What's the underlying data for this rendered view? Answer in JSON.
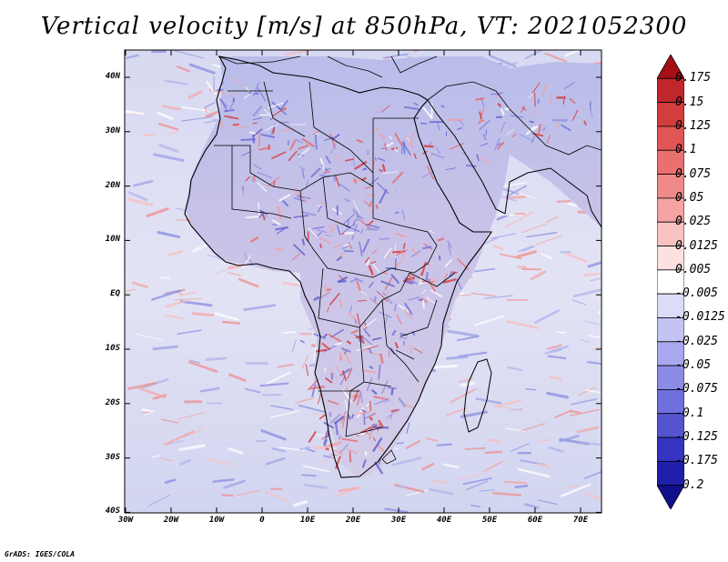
{
  "title": "Vertical velocity [m/s] at 850hPa, VT: 2021052300",
  "credit": "GrADS: IGES/COLA",
  "map": {
    "lon_range": [
      -30,
      75
    ],
    "lat_range": [
      -40,
      45
    ],
    "lat_labels": [
      "40N",
      "30N",
      "20N",
      "10N",
      "EQ",
      "10S",
      "20S",
      "30S",
      "40S"
    ],
    "lon_labels": [
      "30W",
      "20W",
      "10W",
      "0",
      "10E",
      "20E",
      "30E",
      "40E",
      "50E",
      "60E",
      "70E"
    ],
    "field": "vertical velocity",
    "coastline_color": "#000000",
    "border_color": "#000000"
  },
  "colorbar": {
    "labels": [
      "0.175",
      "0.15",
      "0.125",
      "0.1",
      "0.075",
      "0.05",
      "0.025",
      "0.0125",
      "0.005",
      "-0.005",
      "-0.0125",
      "-0.025",
      "-0.05",
      "-0.075",
      "-0.1",
      "-0.125",
      "-0.175",
      "-0.2"
    ],
    "colors": [
      "#a50f15",
      "#c0272d",
      "#d43d3d",
      "#e15555",
      "#ea7070",
      "#f08a8a",
      "#f5a3a3",
      "#f9c2c2",
      "#fde0e0",
      "#ffffff",
      "#dcdcf8",
      "#c4c4f4",
      "#a8a8ee",
      "#8c8ce6",
      "#7070dc",
      "#5454cf",
      "#3434c0",
      "#1f1fac",
      "#10108f"
    ]
  }
}
